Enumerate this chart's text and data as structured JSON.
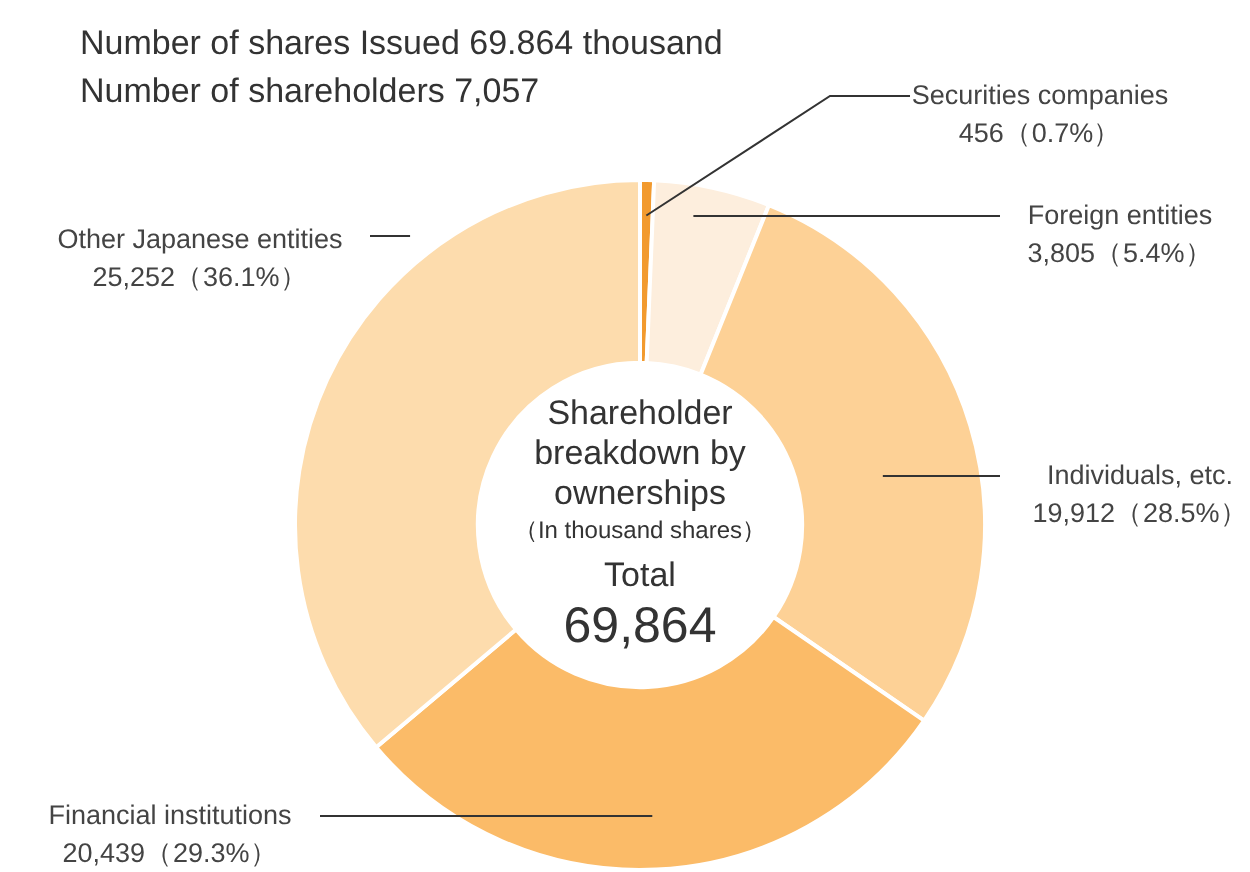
{
  "chart_data": {
    "type": "donut",
    "title": "Number of shares Issued 69.864 thousand",
    "subtitle": "Number of shareholders 7,057",
    "categories": [
      "Securities companies",
      "Foreign entities",
      "Individuals, etc.",
      "Financial institutions",
      "Other Japanese entities"
    ],
    "values": [
      456,
      3805,
      19912,
      20439,
      25252
    ],
    "colors": [
      "#f29a2e",
      "#fdeedd",
      "#fdd196",
      "#fbbb68",
      "#fddcad"
    ],
    "value_labels": [
      "456（0.7%）",
      "3,805（5.4%）",
      "19,912（28.5%）",
      "20,439（29.3%）",
      "25,252（36.1%）"
    ],
    "annotations": [
      "Shareholder breakdown by ownerships",
      "（In thousand shares）",
      "Total",
      "69,864"
    ]
  }
}
